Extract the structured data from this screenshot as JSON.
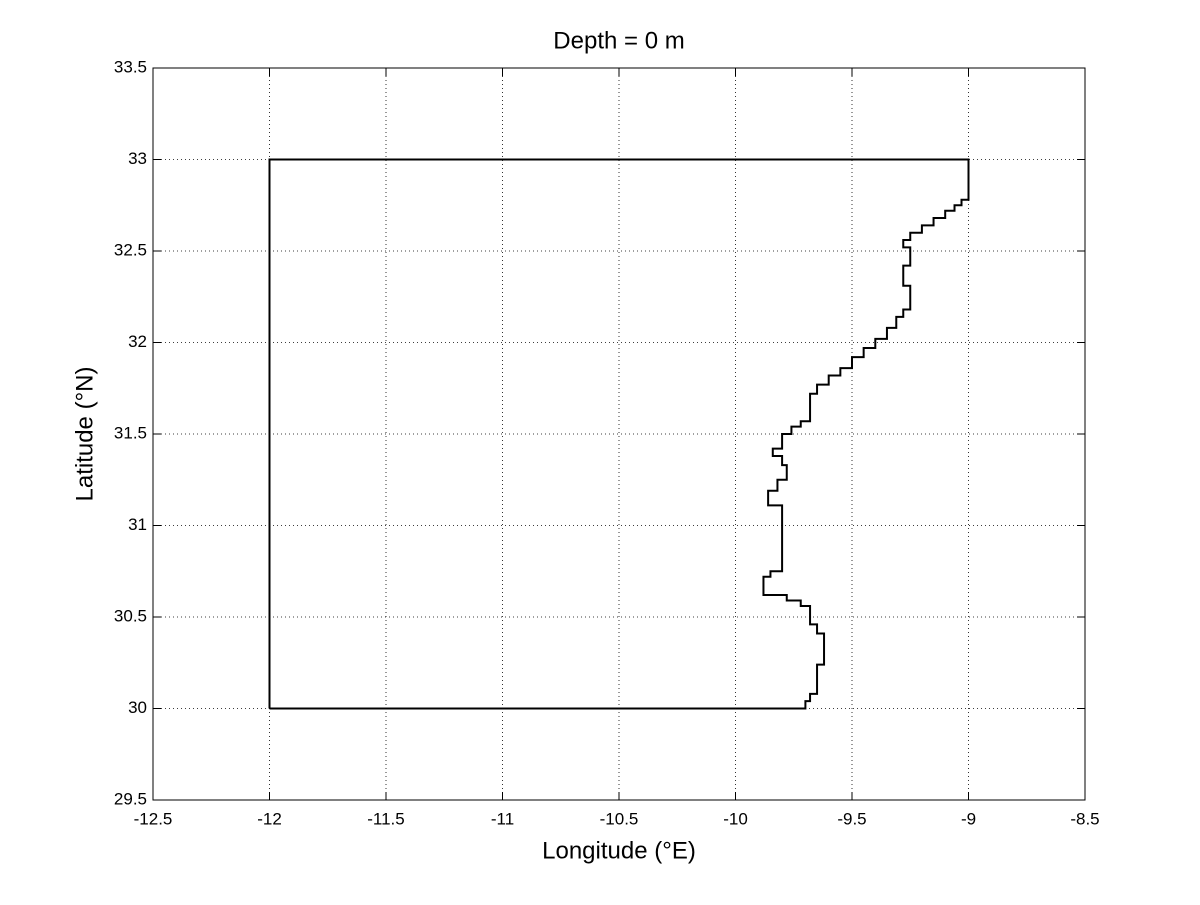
{
  "chart_data": {
    "type": "line",
    "title": "Depth = 0 m",
    "x_label": "Longitude (°E)",
    "y_label": "Latitude (°N)",
    "x": [
      -12,
      -12,
      -9,
      -9,
      -9.03,
      -9.03,
      -9.06,
      -9.06,
      -9.1,
      -9.1,
      -9.15,
      -9.15,
      -9.2,
      -9.2,
      -9.25,
      -9.25,
      -9.28,
      -9.28,
      -9.25,
      -9.25,
      -9.28,
      -9.28,
      -9.25,
      -9.25,
      -9.28,
      -9.28,
      -9.31,
      -9.31,
      -9.35,
      -9.35,
      -9.4,
      -9.4,
      -9.45,
      -9.45,
      -9.5,
      -9.5,
      -9.55,
      -9.55,
      -9.6,
      -9.6,
      -9.65,
      -9.65,
      -9.68,
      -9.68,
      -9.72,
      -9.72,
      -9.76,
      -9.76,
      -9.8,
      -9.8,
      -9.84,
      -9.84,
      -9.8,
      -9.8,
      -9.78,
      -9.78,
      -9.82,
      -9.82,
      -9.86,
      -9.86,
      -9.8,
      -9.8,
      -9.85,
      -9.85,
      -9.88,
      -9.88,
      -9.78,
      -9.78,
      -9.72,
      -9.72,
      -9.68,
      -9.68,
      -9.65,
      -9.65,
      -9.62,
      -9.62,
      -9.65,
      -9.65,
      -9.68,
      -9.68,
      -9.7,
      -9.7,
      -12
    ],
    "values": [
      30,
      33,
      33,
      32.78,
      32.78,
      32.75,
      32.75,
      32.72,
      32.72,
      32.68,
      32.68,
      32.64,
      32.64,
      32.6,
      32.6,
      32.56,
      32.56,
      32.52,
      32.52,
      32.42,
      32.42,
      32.31,
      32.31,
      32.18,
      32.18,
      32.14,
      32.14,
      32.08,
      32.08,
      32.02,
      32.02,
      31.97,
      31.97,
      31.92,
      31.92,
      31.86,
      31.86,
      31.82,
      31.82,
      31.77,
      31.77,
      31.72,
      31.72,
      31.57,
      31.57,
      31.54,
      31.54,
      31.5,
      31.5,
      31.42,
      31.42,
      31.38,
      31.38,
      31.33,
      31.33,
      31.25,
      31.25,
      31.19,
      31.19,
      31.11,
      31.11,
      30.75,
      30.75,
      30.72,
      30.72,
      30.62,
      30.62,
      30.59,
      30.59,
      30.56,
      30.56,
      30.46,
      30.46,
      30.41,
      30.41,
      30.24,
      30.24,
      30.08,
      30.08,
      30.04,
      30.04,
      30,
      30
    ],
    "color": "#000000",
    "xlim": [
      -12.5,
      -8.5
    ],
    "xticks": [
      -12.5,
      -12,
      -11.5,
      -11,
      -10.5,
      -10,
      -9.5,
      -9,
      -8.5
    ],
    "ylim": [
      29.5,
      33.5
    ],
    "yticks": [
      29.5,
      30,
      30.5,
      31,
      31.5,
      32,
      32.5,
      33,
      33.5
    ],
    "grid": true
  }
}
